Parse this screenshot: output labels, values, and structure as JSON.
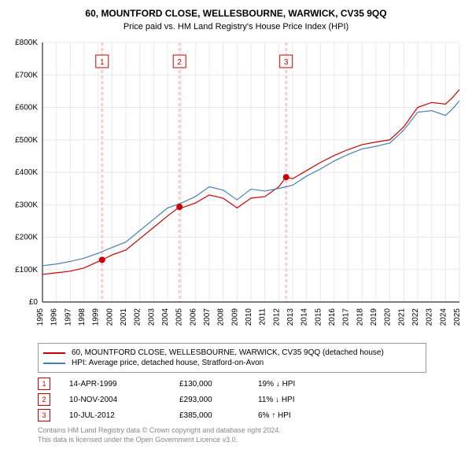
{
  "title": "60, MOUNTFORD CLOSE, WELLESBOURNE, WARWICK, CV35 9QQ",
  "subtitle": "Price paid vs. HM Land Registry's House Price Index (HPI)",
  "chart": {
    "type": "line",
    "background": "#ffffff",
    "plot_bg": "#ffffff",
    "grid_color": "#e8e8e8",
    "axis_color": "#000000",
    "tick_fontsize": 10,
    "x": {
      "min": 1995,
      "max": 2025,
      "ticks": [
        1995,
        1996,
        1997,
        1998,
        1999,
        2000,
        2001,
        2002,
        2003,
        2004,
        2005,
        2006,
        2007,
        2008,
        2009,
        2010,
        2011,
        2012,
        2013,
        2014,
        2015,
        2016,
        2017,
        2018,
        2019,
        2020,
        2021,
        2022,
        2023,
        2024,
        2025
      ],
      "rotate": -90
    },
    "y": {
      "min": 0,
      "max": 800000,
      "step": 100000,
      "labels": [
        "£0",
        "£100K",
        "£200K",
        "£300K",
        "£400K",
        "£500K",
        "£600K",
        "£700K",
        "£800K"
      ]
    },
    "series": [
      {
        "name": "red",
        "color": "#cc0000",
        "width": 1.2,
        "points": [
          [
            1995,
            85000
          ],
          [
            1996,
            90000
          ],
          [
            1997,
            95000
          ],
          [
            1998,
            105000
          ],
          [
            1999.29,
            130000
          ],
          [
            2000,
            145000
          ],
          [
            2001,
            160000
          ],
          [
            2002,
            195000
          ],
          [
            2003,
            230000
          ],
          [
            2004,
            265000
          ],
          [
            2004.86,
            293000
          ],
          [
            2005,
            290000
          ],
          [
            2006,
            305000
          ],
          [
            2007,
            330000
          ],
          [
            2008,
            320000
          ],
          [
            2009,
            290000
          ],
          [
            2010,
            320000
          ],
          [
            2011,
            325000
          ],
          [
            2012,
            355000
          ],
          [
            2012.53,
            385000
          ],
          [
            2013,
            380000
          ],
          [
            2014,
            405000
          ],
          [
            2015,
            430000
          ],
          [
            2016,
            452000
          ],
          [
            2017,
            470000
          ],
          [
            2018,
            485000
          ],
          [
            2019,
            493000
          ],
          [
            2020,
            500000
          ],
          [
            2021,
            540000
          ],
          [
            2022,
            600000
          ],
          [
            2023,
            615000
          ],
          [
            2024,
            610000
          ],
          [
            2024.5,
            630000
          ],
          [
            2025,
            655000
          ]
        ]
      },
      {
        "name": "blue",
        "color": "#4a7fb5",
        "width": 1.2,
        "points": [
          [
            1995,
            112000
          ],
          [
            1996,
            117000
          ],
          [
            1997,
            125000
          ],
          [
            1998,
            135000
          ],
          [
            1999,
            150000
          ],
          [
            2000,
            168000
          ],
          [
            2001,
            185000
          ],
          [
            2002,
            220000
          ],
          [
            2003,
            255000
          ],
          [
            2004,
            290000
          ],
          [
            2005,
            305000
          ],
          [
            2006,
            325000
          ],
          [
            2007,
            355000
          ],
          [
            2008,
            345000
          ],
          [
            2009,
            315000
          ],
          [
            2010,
            348000
          ],
          [
            2011,
            342000
          ],
          [
            2012,
            350000
          ],
          [
            2013,
            360000
          ],
          [
            2014,
            388000
          ],
          [
            2015,
            410000
          ],
          [
            2016,
            435000
          ],
          [
            2017,
            455000
          ],
          [
            2018,
            472000
          ],
          [
            2019,
            480000
          ],
          [
            2020,
            490000
          ],
          [
            2021,
            530000
          ],
          [
            2022,
            585000
          ],
          [
            2023,
            590000
          ],
          [
            2024,
            575000
          ],
          [
            2024.5,
            595000
          ],
          [
            2025,
            620000
          ]
        ]
      }
    ],
    "events": [
      {
        "num": "1",
        "year": 1999.29,
        "value": 130000
      },
      {
        "num": "2",
        "year": 2004.86,
        "value": 293000
      },
      {
        "num": "3",
        "year": 2012.53,
        "value": 385000
      }
    ],
    "event_line_color": "#ffcccc",
    "event_marker_color": "#cc0000",
    "event_box_border": "#cc0000",
    "event_box_text": "#cc0000"
  },
  "legend": {
    "red": {
      "color": "#cc0000",
      "label": "60, MOUNTFORD CLOSE, WELLESBOURNE, WARWICK, CV35 9QQ (detached house)"
    },
    "blue": {
      "color": "#4a7fb5",
      "label": "HPI: Average price, detached house, Stratford-on-Avon"
    }
  },
  "event_table": [
    {
      "num": "1",
      "date": "14-APR-1999",
      "price": "£130,000",
      "diff": "19% ↓ HPI"
    },
    {
      "num": "2",
      "date": "10-NOV-2004",
      "price": "£293,000",
      "diff": "11% ↓ HPI"
    },
    {
      "num": "3",
      "date": "10-JUL-2012",
      "price": "£385,000",
      "diff": "6% ↑ HPI"
    }
  ],
  "footnote_l1": "Contains HM Land Registry data © Crown copyright and database right 2024.",
  "footnote_l2": "This data is licensed under the Open Government Licence v3.0."
}
